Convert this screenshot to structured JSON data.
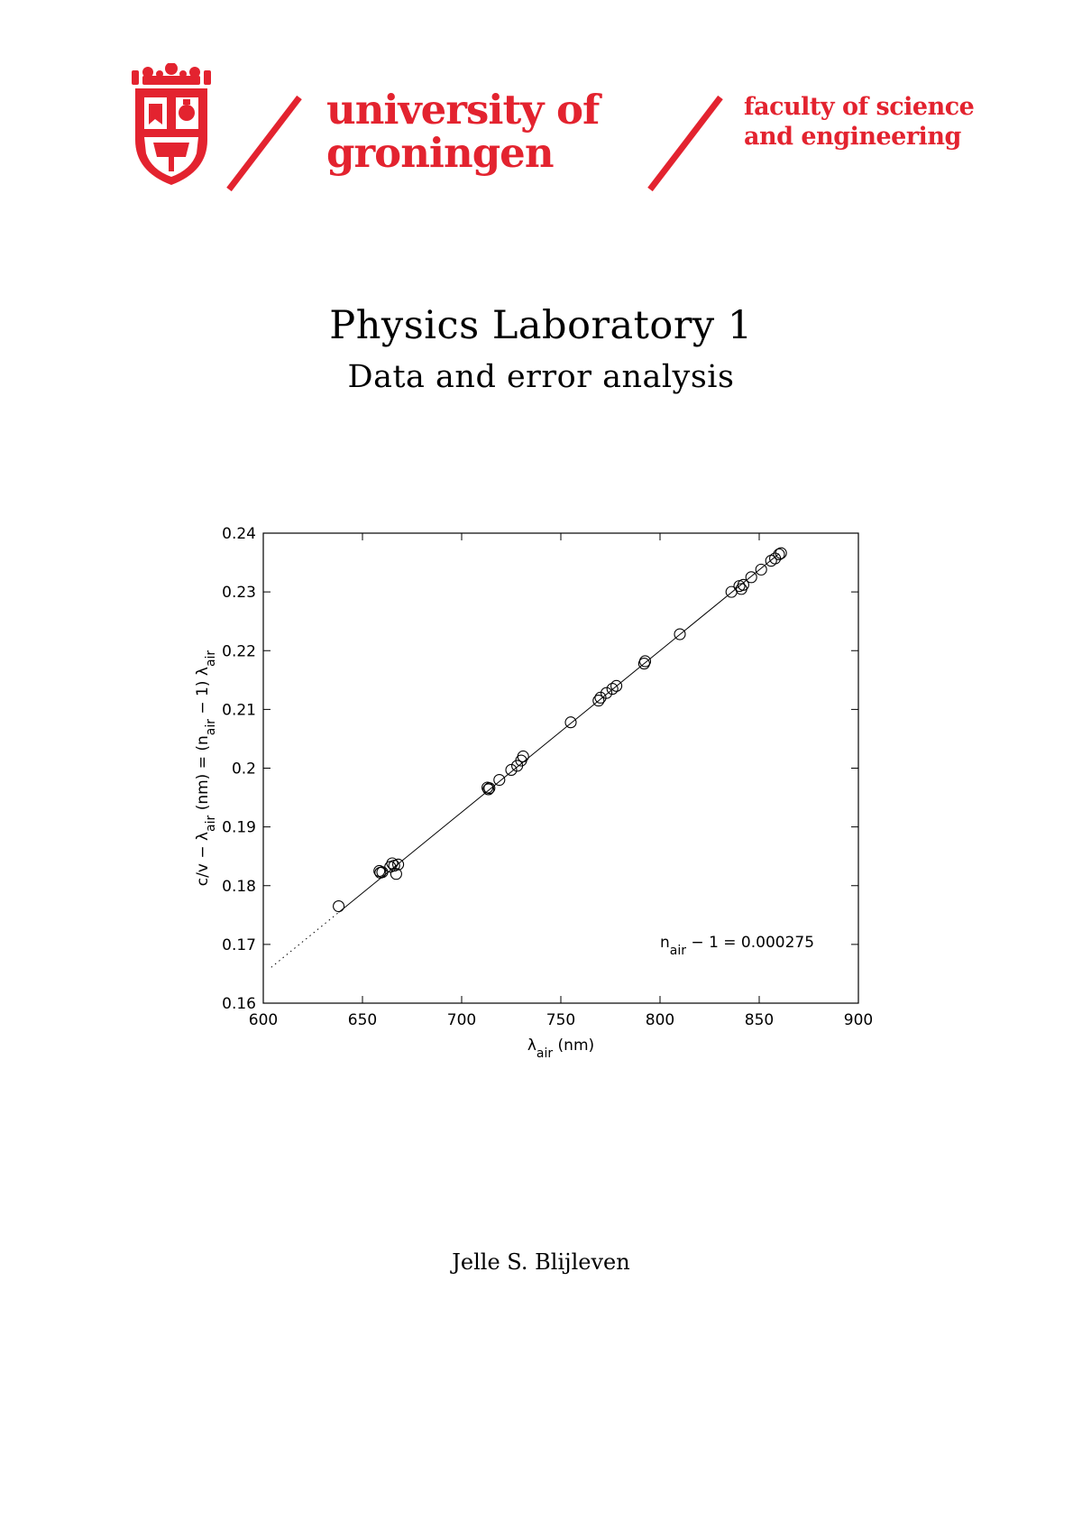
{
  "header": {
    "university_line1": "university of",
    "university_line2": "groningen",
    "faculty_line1": "faculty of science",
    "faculty_line2": "and engineering",
    "brand_color": "#e3232f",
    "crest_icon": "university-crest-icon"
  },
  "document": {
    "title": "Physics Laboratory 1",
    "subtitle": "Data and error analysis",
    "author": "Jelle S. Blijleven"
  },
  "chart_data": {
    "type": "scatter",
    "xlabel": "λair (nm)",
    "ylabel": "c/v − λair (nm) = (nair − 1) λair",
    "annotation": "nair − 1 = 0.000275",
    "xlim": [
      600,
      900
    ],
    "ylim": [
      0.16,
      0.24
    ],
    "xticks": [
      "600",
      "650",
      "700",
      "750",
      "800",
      "850",
      "900"
    ],
    "yticks": [
      "0.16",
      "0.17",
      "0.18",
      "0.19",
      "0.2",
      "0.21",
      "0.22",
      "0.23",
      "0.24"
    ],
    "fit": {
      "slope": 0.000275,
      "intercept": 0,
      "solid_from": 638,
      "solid_to": 860,
      "dotted_from": 604,
      "dotted_to": 638
    },
    "points": [
      {
        "x": 638,
        "y": 0.1765
      },
      {
        "x": 658.5,
        "y": 0.1825
      },
      {
        "x": 659,
        "y": 0.1822
      },
      {
        "x": 660,
        "y": 0.1823
      },
      {
        "x": 664,
        "y": 0.1832
      },
      {
        "x": 665,
        "y": 0.1838
      },
      {
        "x": 666,
        "y": 0.1834
      },
      {
        "x": 667,
        "y": 0.182
      },
      {
        "x": 668,
        "y": 0.1836
      },
      {
        "x": 713,
        "y": 0.1967
      },
      {
        "x": 713.5,
        "y": 0.1964
      },
      {
        "x": 714,
        "y": 0.1966
      },
      {
        "x": 719,
        "y": 0.198
      },
      {
        "x": 725,
        "y": 0.1997
      },
      {
        "x": 728,
        "y": 0.2004
      },
      {
        "x": 730,
        "y": 0.2013
      },
      {
        "x": 731,
        "y": 0.202
      },
      {
        "x": 755,
        "y": 0.2078
      },
      {
        "x": 769,
        "y": 0.2115
      },
      {
        "x": 770,
        "y": 0.212
      },
      {
        "x": 773,
        "y": 0.2128
      },
      {
        "x": 776,
        "y": 0.2135
      },
      {
        "x": 778,
        "y": 0.214
      },
      {
        "x": 792,
        "y": 0.2178
      },
      {
        "x": 792.5,
        "y": 0.2182
      },
      {
        "x": 810,
        "y": 0.2228
      },
      {
        "x": 836,
        "y": 0.23
      },
      {
        "x": 840,
        "y": 0.231
      },
      {
        "x": 841,
        "y": 0.2305
      },
      {
        "x": 842,
        "y": 0.2312
      },
      {
        "x": 846,
        "y": 0.2325
      },
      {
        "x": 851,
        "y": 0.2338
      },
      {
        "x": 856,
        "y": 0.2353
      },
      {
        "x": 858,
        "y": 0.2357
      },
      {
        "x": 860,
        "y": 0.2364
      },
      {
        "x": 861,
        "y": 0.2366
      }
    ]
  }
}
